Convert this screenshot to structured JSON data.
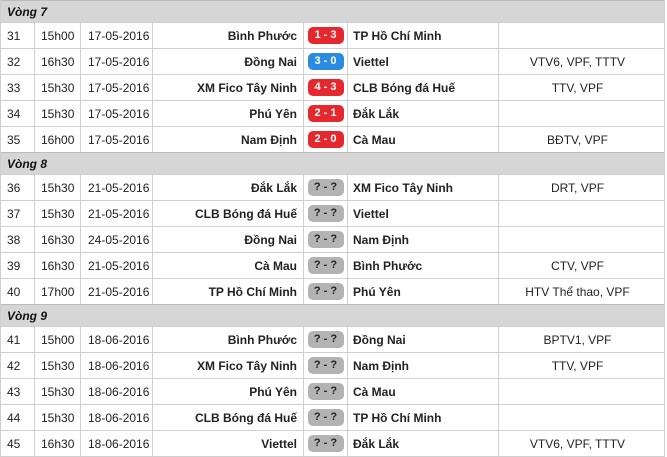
{
  "rounds": [
    {
      "title": "Vòng 7",
      "matches": [
        {
          "num": "31",
          "time": "15h00",
          "date": "17-05-2016",
          "home": "Bình Phước",
          "score": "1 - 3",
          "score_color": "red",
          "away": "TP Hồ Chí Minh",
          "tv": ""
        },
        {
          "num": "32",
          "time": "16h30",
          "date": "17-05-2016",
          "home": "Đồng Nai",
          "score": "3 - 0",
          "score_color": "blue",
          "away": "Viettel",
          "tv": "VTV6, VPF, TTTV"
        },
        {
          "num": "33",
          "time": "15h30",
          "date": "17-05-2016",
          "home": "XM Fico Tây Ninh",
          "score": "4 - 3",
          "score_color": "red",
          "away": "CLB Bóng đá Huế",
          "tv": "TTV, VPF"
        },
        {
          "num": "34",
          "time": "15h30",
          "date": "17-05-2016",
          "home": "Phú Yên",
          "score": "2 - 1",
          "score_color": "red",
          "away": "Đắk Lắk",
          "tv": ""
        },
        {
          "num": "35",
          "time": "16h00",
          "date": "17-05-2016",
          "home": "Nam Định",
          "score": "2 - 0",
          "score_color": "red",
          "away": "Cà Mau",
          "tv": "BĐTV, VPF"
        }
      ]
    },
    {
      "title": "Vòng 8",
      "matches": [
        {
          "num": "36",
          "time": "15h30",
          "date": "21-05-2016",
          "home": "Đắk Lắk",
          "score": "? - ?",
          "score_color": "gray",
          "away": "XM Fico Tây Ninh",
          "tv": "DRT, VPF"
        },
        {
          "num": "37",
          "time": "15h30",
          "date": "21-05-2016",
          "home": "CLB Bóng đá Huế",
          "score": "? - ?",
          "score_color": "gray",
          "away": "Viettel",
          "tv": ""
        },
        {
          "num": "38",
          "time": "16h30",
          "date": "24-05-2016",
          "home": "Đồng Nai",
          "score": "? - ?",
          "score_color": "gray",
          "away": "Nam Định",
          "tv": ""
        },
        {
          "num": "39",
          "time": "16h30",
          "date": "21-05-2016",
          "home": "Cà Mau",
          "score": "? - ?",
          "score_color": "gray",
          "away": "Bình Phước",
          "tv": "CTV, VPF"
        },
        {
          "num": "40",
          "time": "17h00",
          "date": "21-05-2016",
          "home": "TP Hồ Chí Minh",
          "score": "? - ?",
          "score_color": "gray",
          "away": "Phú Yên",
          "tv": "HTV Thể thao, VPF"
        }
      ]
    },
    {
      "title": "Vòng 9",
      "matches": [
        {
          "num": "41",
          "time": "15h00",
          "date": "18-06-2016",
          "home": "Bình Phước",
          "score": "? - ?",
          "score_color": "gray",
          "away": "Đồng Nai",
          "tv": "BPTV1, VPF"
        },
        {
          "num": "42",
          "time": "15h30",
          "date": "18-06-2016",
          "home": "XM Fico Tây Ninh",
          "score": "? - ?",
          "score_color": "gray",
          "away": "Nam Định",
          "tv": "TTV, VPF"
        },
        {
          "num": "43",
          "time": "15h30",
          "date": "18-06-2016",
          "home": "Phú Yên",
          "score": "? - ?",
          "score_color": "gray",
          "away": "Cà Mau",
          "tv": ""
        },
        {
          "num": "44",
          "time": "15h30",
          "date": "18-06-2016",
          "home": "CLB Bóng đá Huế",
          "score": "? - ?",
          "score_color": "gray",
          "away": "TP Hồ Chí Minh",
          "tv": ""
        },
        {
          "num": "45",
          "time": "16h30",
          "date": "18-06-2016",
          "home": "Viettel",
          "score": "? - ?",
          "score_color": "gray",
          "away": "Đắk Lắk",
          "tv": "VTV6, VPF, TTTV"
        }
      ]
    }
  ]
}
